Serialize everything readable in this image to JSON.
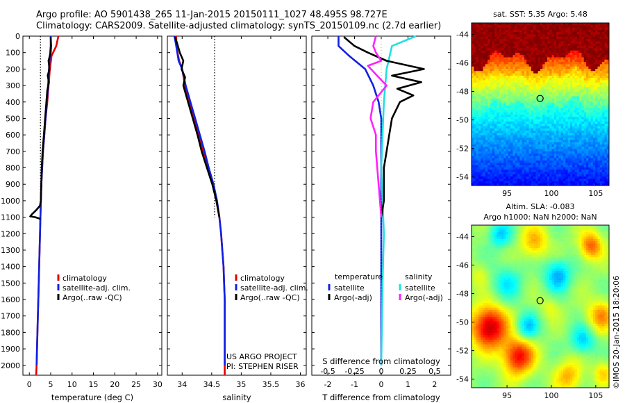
{
  "header": {
    "line1": "Argo profile: AO 5901438_265 11-Jan-2015 20150111_1027 48.495S 98.727E",
    "line2": "Climatology: CARS2009. Satellite-adjusted climatology: synTS_20150109.nc (2.7d earlier)"
  },
  "chart_data": [
    {
      "id": "temperature",
      "type": "line",
      "xlabel": "temperature (deg C)",
      "xlim": [
        -1.5,
        31
      ],
      "xticks": [
        0,
        5,
        10,
        15,
        20,
        25,
        30
      ],
      "ylim": [
        2060,
        0
      ],
      "yticks": [
        0,
        100,
        200,
        300,
        400,
        500,
        600,
        700,
        800,
        900,
        1000,
        1100,
        1200,
        1300,
        1400,
        1500,
        1600,
        1700,
        1800,
        1900,
        2000
      ],
      "legend": [
        "climatology",
        "satellite-adj. clim.",
        "Argo(..raw -QC)"
      ],
      "series": [
        {
          "name": "climatology",
          "color": "#e00000",
          "points": [
            [
              6.8,
              0
            ],
            [
              6.3,
              60
            ],
            [
              5.2,
              120
            ],
            [
              4.8,
              200
            ],
            [
              4.5,
              300
            ],
            [
              4.2,
              400
            ],
            [
              3.8,
              500
            ],
            [
              3.5,
              600
            ],
            [
              3.2,
              700
            ],
            [
              3.0,
              800
            ],
            [
              2.8,
              900
            ],
            [
              2.7,
              1000
            ],
            [
              2.6,
              1100
            ],
            [
              2.5,
              1200
            ],
            [
              2.4,
              1300
            ],
            [
              2.3,
              1400
            ],
            [
              2.2,
              1500
            ],
            [
              2.1,
              1600
            ],
            [
              2.0,
              1700
            ],
            [
              1.9,
              1800
            ],
            [
              1.8,
              1900
            ],
            [
              1.7,
              2000
            ],
            [
              1.6,
              2060
            ]
          ]
        },
        {
          "name": "satellite-adj. clim.",
          "color": "#1020e0",
          "points": [
            [
              5.0,
              0
            ],
            [
              5.0,
              60
            ],
            [
              4.8,
              120
            ],
            [
              4.6,
              200
            ],
            [
              4.4,
              300
            ],
            [
              4.1,
              400
            ],
            [
              3.8,
              500
            ],
            [
              3.5,
              600
            ],
            [
              3.2,
              700
            ],
            [
              3.0,
              800
            ],
            [
              2.8,
              900
            ],
            [
              2.7,
              1000
            ],
            [
              2.6,
              1100
            ],
            [
              2.5,
              1200
            ],
            [
              2.4,
              1300
            ],
            [
              2.3,
              1400
            ],
            [
              2.2,
              1500
            ],
            [
              2.1,
              1600
            ],
            [
              2.0,
              1700
            ],
            [
              1.9,
              1800
            ],
            [
              1.8,
              1900
            ],
            [
              1.7,
              2000
            ]
          ]
        },
        {
          "name": "Argo(..raw -QC)",
          "color": "#000000",
          "points": [
            [
              5.0,
              5
            ],
            [
              5.1,
              60
            ],
            [
              5.0,
              100
            ],
            [
              4.5,
              150
            ],
            [
              4.7,
              200
            ],
            [
              4.3,
              240
            ],
            [
              4.6,
              280
            ],
            [
              4.2,
              330
            ],
            [
              4.0,
              400
            ],
            [
              3.7,
              500
            ],
            [
              3.4,
              600
            ],
            [
              3.1,
              700
            ],
            [
              2.9,
              800
            ],
            [
              2.8,
              900
            ],
            [
              2.7,
              1000
            ],
            [
              2.5,
              1030
            ],
            [
              1.5,
              1060
            ],
            [
              0.7,
              1080
            ],
            [
              0.2,
              1095
            ],
            [
              1.4,
              1100
            ],
            [
              2.6,
              1110
            ]
          ]
        }
      ],
      "reference": {
        "color": "#000000",
        "points": [
          [
            2.6,
            0
          ],
          [
            2.6,
            1100
          ]
        ]
      }
    },
    {
      "id": "salinity",
      "type": "line",
      "xlabel": "salinity",
      "xlim": [
        33.75,
        36.1
      ],
      "xticks": [
        34,
        34.5,
        35,
        35.5,
        36
      ],
      "ylim": [
        2060,
        0
      ],
      "legend": [
        "climatology",
        "satellite-adj. clim.",
        "Argo(..raw -QC)"
      ],
      "annotation": [
        "US ARGO PROJECT",
        "PI: STEPHEN RISER"
      ],
      "series": [
        {
          "name": "climatology",
          "color": "#e00000",
          "points": [
            [
              33.9,
              0
            ],
            [
              33.9,
              60
            ],
            [
              33.95,
              150
            ],
            [
              34.0,
              200
            ],
            [
              34.05,
              300
            ],
            [
              34.12,
              400
            ],
            [
              34.2,
              500
            ],
            [
              34.28,
              600
            ],
            [
              34.36,
              700
            ],
            [
              34.44,
              800
            ],
            [
              34.52,
              900
            ],
            [
              34.58,
              1000
            ],
            [
              34.63,
              1100
            ],
            [
              34.66,
              1200
            ],
            [
              34.68,
              1300
            ],
            [
              34.7,
              1400
            ],
            [
              34.71,
              1500
            ],
            [
              34.72,
              1600
            ],
            [
              34.72,
              1700
            ],
            [
              34.72,
              1800
            ],
            [
              34.72,
              1900
            ],
            [
              34.72,
              2000
            ],
            [
              34.72,
              2060
            ]
          ]
        },
        {
          "name": "satellite-adj. clim.",
          "color": "#1020e0",
          "points": [
            [
              33.87,
              0
            ],
            [
              33.9,
              60
            ],
            [
              33.94,
              150
            ],
            [
              34.0,
              200
            ],
            [
              34.06,
              300
            ],
            [
              34.14,
              400
            ],
            [
              34.22,
              500
            ],
            [
              34.3,
              600
            ],
            [
              34.38,
              700
            ],
            [
              34.45,
              800
            ],
            [
              34.53,
              900
            ],
            [
              34.59,
              1000
            ],
            [
              34.63,
              1100
            ],
            [
              34.66,
              1200
            ],
            [
              34.68,
              1300
            ],
            [
              34.7,
              1400
            ],
            [
              34.71,
              1500
            ],
            [
              34.72,
              1600
            ],
            [
              34.72,
              1700
            ],
            [
              34.72,
              1800
            ],
            [
              34.72,
              1900
            ],
            [
              34.72,
              2000
            ]
          ]
        },
        {
          "name": "Argo(..raw -QC)",
          "color": "#000000",
          "points": [
            [
              33.88,
              5
            ],
            [
              33.92,
              50
            ],
            [
              33.96,
              100
            ],
            [
              34.02,
              150
            ],
            [
              33.99,
              200
            ],
            [
              34.05,
              250
            ],
            [
              34.02,
              300
            ],
            [
              34.1,
              400
            ],
            [
              34.18,
              500
            ],
            [
              34.26,
              600
            ],
            [
              34.33,
              700
            ],
            [
              34.42,
              800
            ],
            [
              34.51,
              900
            ],
            [
              34.58,
              1000
            ],
            [
              34.63,
              1100
            ]
          ]
        }
      ],
      "reference": {
        "color": "#000000",
        "points": [
          [
            34.55,
            0
          ],
          [
            34.55,
            1100
          ]
        ]
      }
    },
    {
      "id": "difference",
      "type": "line",
      "xlabel": "T difference from climatology",
      "xlabel2": "S difference from climatology",
      "xlim": [
        -2.6,
        2.6
      ],
      "xticks": [
        -2,
        -1,
        0,
        1,
        2
      ],
      "x2ticks": [
        -0.5,
        -0.25,
        0,
        0.25,
        0.5
      ],
      "ylim": [
        2060,
        0
      ],
      "legend_temperature_title": "temperature",
      "legend_salinity_title": "salinity",
      "legend_temperature": [
        "satellite",
        "Argo(-adj)"
      ],
      "legend_salinity": [
        "satellite",
        "Argo(-adj)"
      ],
      "series": [
        {
          "name": "temperature satellite",
          "color": "#1020e0",
          "points": [
            [
              -1.6,
              0
            ],
            [
              -1.6,
              60
            ],
            [
              -1.2,
              120
            ],
            [
              -0.6,
              200
            ],
            [
              -0.3,
              300
            ],
            [
              -0.1,
              400
            ],
            [
              0.0,
              500
            ],
            [
              0.0,
              2000
            ]
          ]
        },
        {
          "name": "salinity satellite",
          "color": "#20e0e0",
          "points": [
            [
              1.3,
              0
            ],
            [
              0.4,
              60
            ],
            [
              0.2,
              200
            ],
            [
              0.1,
              400
            ],
            [
              0.05,
              600
            ],
            [
              0.0,
              800
            ],
            [
              0.05,
              1000
            ],
            [
              0.1,
              1200
            ],
            [
              0.05,
              1500
            ],
            [
              0.0,
              2000
            ]
          ]
        },
        {
          "name": "temperature Argo(-adj)",
          "color": "#000000",
          "points": [
            [
              -1.4,
              5
            ],
            [
              -1.0,
              60
            ],
            [
              -0.5,
              100
            ],
            [
              0.2,
              150
            ],
            [
              1.6,
              200
            ],
            [
              0.4,
              240
            ],
            [
              1.5,
              280
            ],
            [
              0.6,
              320
            ],
            [
              1.2,
              360
            ],
            [
              0.7,
              400
            ],
            [
              0.4,
              500
            ],
            [
              0.3,
              600
            ],
            [
              0.2,
              700
            ],
            [
              0.1,
              800
            ],
            [
              0.1,
              900
            ],
            [
              0.1,
              1000
            ],
            [
              0.0,
              1100
            ]
          ]
        },
        {
          "name": "salinity Argo(-adj)",
          "color": "#ff20ff",
          "points": [
            [
              -0.2,
              0
            ],
            [
              -0.3,
              60
            ],
            [
              -0.2,
              100
            ],
            [
              0.0,
              150
            ],
            [
              -0.5,
              180
            ],
            [
              -0.1,
              250
            ],
            [
              0.2,
              300
            ],
            [
              -0.3,
              400
            ],
            [
              -0.4,
              500
            ],
            [
              -0.2,
              600
            ],
            [
              -0.2,
              700
            ],
            [
              -0.1,
              900
            ],
            [
              0.0,
              1100
            ]
          ]
        }
      ]
    },
    {
      "id": "sst-map",
      "type": "heatmap",
      "title": "sat. SST: 5.35 Argo: 5.48",
      "xlim": [
        91,
        106.5
      ],
      "ylim": [
        -54.6,
        -43.2
      ],
      "xticks": [
        95,
        100,
        105
      ],
      "yticks": [
        -44,
        -46,
        -48,
        -50,
        -52,
        -54
      ],
      "marker": [
        98.727,
        -48.495
      ]
    },
    {
      "id": "sla-map",
      "type": "heatmap",
      "title": "Altim. SLA: -0.083",
      "title2": "Argo h1000: NaN h2000: NaN",
      "xlim": [
        91,
        106.5
      ],
      "ylim": [
        -54.6,
        -43.2
      ],
      "xticks": [
        95,
        100,
        105
      ],
      "yticks": [
        -44,
        -46,
        -48,
        -50,
        -52,
        -54
      ],
      "marker": [
        98.727,
        -48.495
      ]
    }
  ],
  "credit": "©IMOS 20-Jan-2015 18:20:06"
}
